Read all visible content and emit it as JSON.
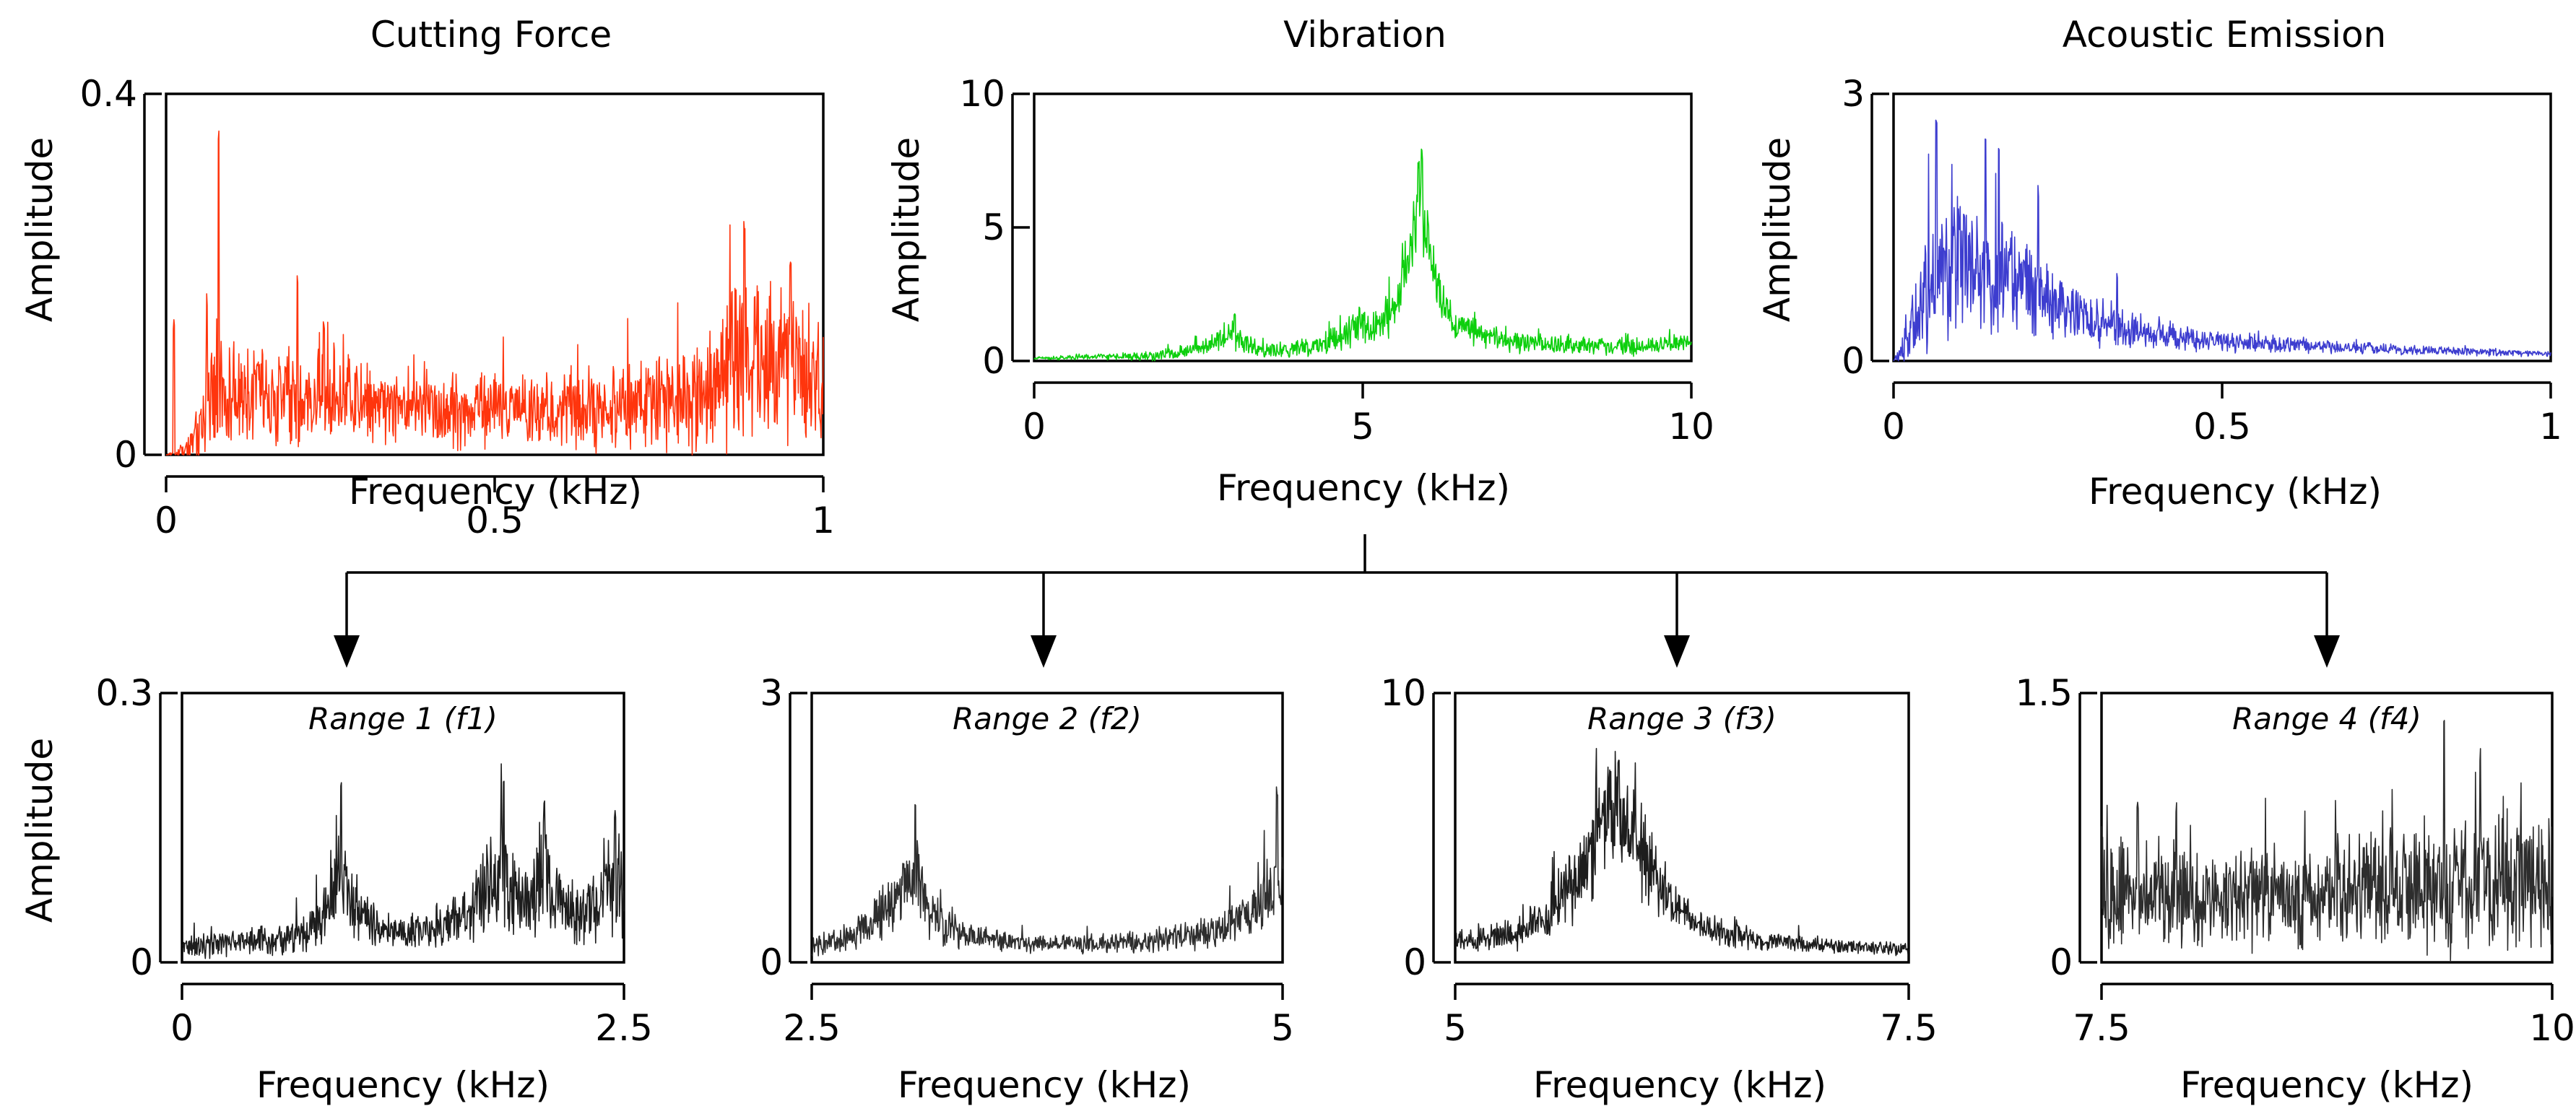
{
  "chart_data": [
    {
      "id": "cutting-force",
      "type": "line",
      "title": "Cutting Force",
      "xlabel": "Frequency (kHz)",
      "ylabel": "Amplitude",
      "xlim": [
        0,
        1
      ],
      "ylim": [
        0,
        0.4
      ],
      "xticks": [
        0,
        0.5,
        1
      ],
      "xtick_labels": [
        "0",
        "0.5",
        "1"
      ],
      "yticks": [
        0,
        0.4
      ],
      "ytick_labels": [
        "0",
        "0.4"
      ],
      "color": "#ff2a00",
      "series": [
        {
          "name": "Cutting Force spectrum",
          "x": [
            0,
            0.02,
            0.05,
            0.06,
            0.075,
            0.08,
            0.1,
            0.15,
            0.2,
            0.25,
            0.3,
            0.35,
            0.4,
            0.45,
            0.5,
            0.55,
            0.6,
            0.65,
            0.7,
            0.75,
            0.8,
            0.85,
            0.88,
            0.9,
            0.93,
            0.96,
            1.0
          ],
          "base": [
            0.0,
            0.003,
            0.02,
            0.06,
            0.08,
            0.07,
            0.07,
            0.07,
            0.065,
            0.06,
            0.06,
            0.055,
            0.055,
            0.05,
            0.05,
            0.05,
            0.05,
            0.05,
            0.055,
            0.06,
            0.07,
            0.09,
            0.1,
            0.1,
            0.095,
            0.09,
            0.08
          ],
          "noise": [
            0.0,
            0.005,
            0.03,
            0.05,
            0.06,
            0.06,
            0.05,
            0.05,
            0.05,
            0.045,
            0.045,
            0.04,
            0.04,
            0.04,
            0.04,
            0.04,
            0.04,
            0.04,
            0.045,
            0.05,
            0.06,
            0.08,
            0.09,
            0.09,
            0.08,
            0.08,
            0.06
          ],
          "peaks": [
            [
              0.012,
              0.15
            ],
            [
              0.062,
              0.18
            ],
            [
              0.08,
              0.38
            ],
            [
              0.2,
              0.2
            ],
            [
              0.24,
              0.15
            ],
            [
              0.88,
              0.26
            ],
            [
              0.95,
              0.22
            ]
          ]
        }
      ]
    },
    {
      "id": "vibration",
      "type": "line",
      "title": "Vibration",
      "xlabel": "Frequency (kHz)",
      "ylabel": "Amplitude",
      "xlim": [
        0,
        10
      ],
      "ylim": [
        0,
        10
      ],
      "xticks": [
        0,
        5,
        10
      ],
      "xtick_labels": [
        "0",
        "5",
        "10"
      ],
      "yticks": [
        0,
        5,
        10
      ],
      "ytick_labels": [
        "0",
        "5",
        "10"
      ],
      "color": "#00cc00",
      "series": [
        {
          "name": "Vibration spectrum",
          "x": [
            0,
            1,
            2,
            2.6,
            3.0,
            3.4,
            4.0,
            4.6,
            4.9,
            5.2,
            5.5,
            5.7,
            5.85,
            5.95,
            6.1,
            6.4,
            7.0,
            8.0,
            9.0,
            10.0
          ],
          "base": [
            0.1,
            0.15,
            0.2,
            0.5,
            1.0,
            0.4,
            0.4,
            0.8,
            1.3,
            1.2,
            2.0,
            4.0,
            5.8,
            5.0,
            3.0,
            1.5,
            0.8,
            0.6,
            0.5,
            0.7
          ],
          "noise": [
            0.05,
            0.1,
            0.2,
            0.3,
            0.5,
            0.3,
            0.3,
            0.5,
            0.6,
            0.6,
            0.8,
            1.2,
            1.5,
            1.2,
            1.0,
            0.6,
            0.4,
            0.3,
            0.3,
            0.3
          ],
          "peaks": [
            [
              3.05,
              1.8
            ],
            [
              4.95,
              2.1
            ],
            [
              5.9,
              8.0
            ],
            [
              5.85,
              7.6
            ]
          ]
        }
      ]
    },
    {
      "id": "acoustic-emission",
      "type": "line",
      "title": "Acoustic Emission",
      "xlabel": "Frequency (kHz)",
      "ylabel": "Amplitude",
      "xlim": [
        0,
        1
      ],
      "ylim": [
        0,
        3
      ],
      "xticks": [
        0,
        0.5,
        1
      ],
      "xtick_labels": [
        "0",
        "0.5",
        "1"
      ],
      "yticks": [
        0,
        3
      ],
      "ytick_labels": [
        "0",
        "3"
      ],
      "color": "#3333cc",
      "series": [
        {
          "name": "Acoustic Emission spectrum",
          "x": [
            0,
            0.02,
            0.05,
            0.08,
            0.12,
            0.16,
            0.2,
            0.25,
            0.3,
            0.35,
            0.4,
            0.5,
            0.6,
            0.7,
            0.8,
            0.9,
            1.0
          ],
          "base": [
            0.0,
            0.2,
            0.8,
            1.0,
            1.05,
            1.0,
            0.85,
            0.6,
            0.45,
            0.35,
            0.3,
            0.22,
            0.18,
            0.15,
            0.12,
            0.1,
            0.08
          ],
          "noise": [
            0.0,
            0.3,
            0.6,
            0.7,
            0.7,
            0.6,
            0.5,
            0.35,
            0.25,
            0.2,
            0.15,
            0.1,
            0.08,
            0.06,
            0.05,
            0.04,
            0.03
          ],
          "peaks": [
            [
              0.065,
              2.8
            ],
            [
              0.14,
              2.6
            ],
            [
              0.16,
              2.4
            ],
            [
              0.22,
              2.0
            ],
            [
              0.34,
              1.0
            ]
          ]
        }
      ]
    },
    {
      "id": "range-1",
      "type": "line",
      "title": "Range 1 (f1)",
      "xlabel": "Frequency (kHz)",
      "ylabel": "Amplitude",
      "xlim": [
        0,
        2.5
      ],
      "ylim": [
        0,
        0.3
      ],
      "xticks": [
        0,
        2.5
      ],
      "xtick_labels": [
        "0",
        "2.5"
      ],
      "yticks": [
        0,
        0.3
      ],
      "ytick_labels": [
        "0",
        "0.3"
      ],
      "color": "#111111",
      "series": [
        {
          "name": "Range 1 spectrum",
          "x": [
            0,
            0.4,
            0.7,
            0.85,
            0.9,
            0.95,
            1.1,
            1.4,
            1.6,
            1.75,
            1.82,
            1.9,
            2.0,
            2.05,
            2.1,
            2.25,
            2.4,
            2.5
          ],
          "base": [
            0.015,
            0.025,
            0.03,
            0.07,
            0.1,
            0.07,
            0.035,
            0.035,
            0.05,
            0.09,
            0.11,
            0.06,
            0.07,
            0.1,
            0.07,
            0.05,
            0.08,
            0.07
          ],
          "noise": [
            0.01,
            0.015,
            0.02,
            0.04,
            0.05,
            0.04,
            0.02,
            0.02,
            0.03,
            0.05,
            0.06,
            0.04,
            0.04,
            0.05,
            0.04,
            0.03,
            0.05,
            0.04
          ],
          "peaks": [
            [
              0.9,
              0.21
            ],
            [
              1.82,
              0.21
            ],
            [
              2.05,
              0.18
            ],
            [
              2.45,
              0.17
            ]
          ]
        }
      ]
    },
    {
      "id": "range-2",
      "type": "line",
      "title": "Range 2 (f2)",
      "xlabel": "Frequency (kHz)",
      "ylabel": "Amplitude",
      "xlim": [
        2.5,
        5
      ],
      "ylim": [
        0,
        3
      ],
      "xticks": [
        2.5,
        5
      ],
      "xtick_labels": [
        "2.5",
        "5"
      ],
      "yticks": [
        0,
        3
      ],
      "ytick_labels": [
        "0",
        "3"
      ],
      "color": "#222222",
      "series": [
        {
          "name": "Range 2 spectrum",
          "x": [
            2.5,
            2.7,
            2.85,
            2.95,
            3.05,
            3.15,
            3.3,
            3.6,
            4.0,
            4.3,
            4.6,
            4.8,
            4.9,
            5.0
          ],
          "base": [
            0.15,
            0.3,
            0.5,
            0.8,
            0.9,
            0.5,
            0.3,
            0.22,
            0.2,
            0.25,
            0.3,
            0.5,
            0.7,
            0.9
          ],
          "noise": [
            0.1,
            0.15,
            0.25,
            0.35,
            0.4,
            0.25,
            0.15,
            0.1,
            0.1,
            0.12,
            0.15,
            0.25,
            0.35,
            0.4
          ],
          "peaks": [
            [
              3.05,
              1.8
            ],
            [
              4.97,
              2.0
            ]
          ]
        }
      ]
    },
    {
      "id": "range-3",
      "type": "line",
      "title": "Range 3 (f3)",
      "xlabel": "Frequency (kHz)",
      "ylabel": "Amplitude",
      "xlim": [
        5,
        7.5
      ],
      "ylim": [
        0,
        10
      ],
      "xticks": [
        5,
        7.5
      ],
      "xtick_labels": [
        "5",
        "7.5"
      ],
      "yticks": [
        0,
        10
      ],
      "ytick_labels": [
        "0",
        "10"
      ],
      "color": "#111111",
      "series": [
        {
          "name": "Range 3 spectrum",
          "x": [
            5.0,
            5.3,
            5.5,
            5.7,
            5.8,
            5.9,
            6.0,
            6.1,
            6.3,
            6.6,
            7.0,
            7.5
          ],
          "base": [
            0.8,
            1.0,
            1.6,
            3.5,
            5.0,
            5.6,
            4.5,
            3.0,
            1.5,
            0.9,
            0.6,
            0.5
          ],
          "noise": [
            0.4,
            0.5,
            0.8,
            1.5,
            2.0,
            2.0,
            1.8,
            1.2,
            0.6,
            0.4,
            0.3,
            0.2
          ],
          "peaks": [
            [
              5.9,
              8.0
            ],
            [
              5.85,
              7.2
            ]
          ]
        }
      ]
    },
    {
      "id": "range-4",
      "type": "line",
      "title": "Range 4 (f4)",
      "xlabel": "Frequency (kHz)",
      "ylabel": "Amplitude",
      "xlim": [
        7.5,
        10
      ],
      "ylim": [
        0,
        1.5
      ],
      "xticks": [
        7.5,
        10
      ],
      "xtick_labels": [
        "7.5",
        "10"
      ],
      "yticks": [
        0,
        1.5
      ],
      "ytick_labels": [
        "0",
        "1.5"
      ],
      "color": "#222222",
      "series": [
        {
          "name": "Range 4 spectrum",
          "x": [
            7.5,
            8.0,
            8.5,
            9.0,
            9.5,
            10.0
          ],
          "base": [
            0.4,
            0.35,
            0.35,
            0.4,
            0.45,
            0.45
          ],
          "noise": [
            0.3,
            0.25,
            0.25,
            0.3,
            0.35,
            0.35
          ],
          "peaks": [
            [
              9.4,
              1.4
            ],
            [
              9.6,
              1.2
            ],
            [
              7.7,
              0.9
            ]
          ]
        }
      ]
    }
  ]
}
